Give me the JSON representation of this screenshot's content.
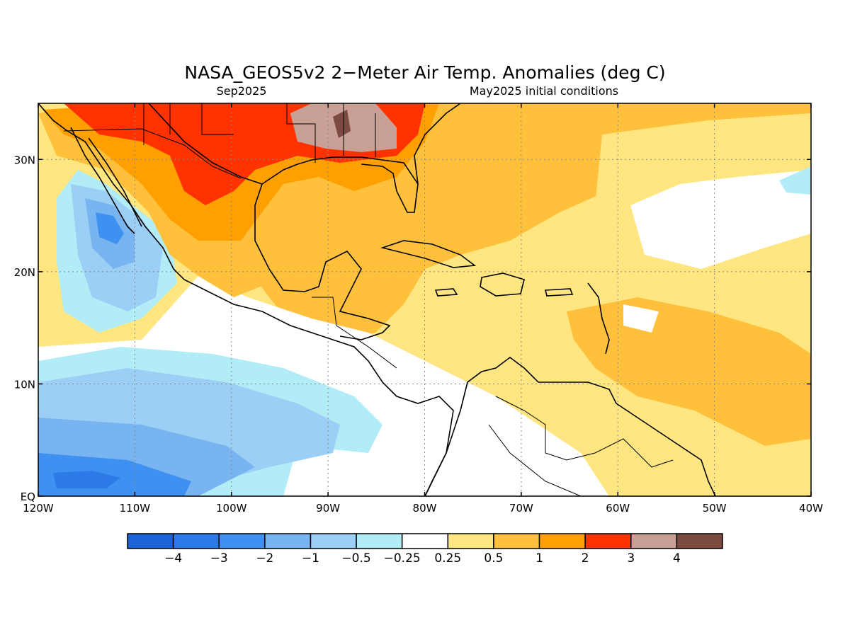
{
  "title": "NASA_GEOS5v2 2−Meter Air Temp. Anomalies (deg C)",
  "subtitle_left": "Sep2025",
  "subtitle_right": "May2025 initial conditions",
  "map": {
    "lon_range": [
      -120,
      -40
    ],
    "lat_range": [
      0,
      35
    ],
    "x_ticks": [
      {
        "lon": -120,
        "label": "120W"
      },
      {
        "lon": -110,
        "label": "110W"
      },
      {
        "lon": -100,
        "label": "100W"
      },
      {
        "lon": -90,
        "label": "90W"
      },
      {
        "lon": -80,
        "label": "80W"
      },
      {
        "lon": -70,
        "label": "70W"
      },
      {
        "lon": -60,
        "label": "60W"
      },
      {
        "lon": -50,
        "label": "50W"
      },
      {
        "lon": -40,
        "label": "40W"
      }
    ],
    "y_ticks": [
      {
        "lat": 0,
        "label": "EQ"
      },
      {
        "lat": 10,
        "label": "10N"
      },
      {
        "lat": 20,
        "label": "20N"
      },
      {
        "lat": 30,
        "label": "30N"
      }
    ],
    "gridlines": "dotted"
  },
  "legend": {
    "colors": [
      "#1a64d8",
      "#2b7ae8",
      "#3e91f0",
      "#78b4f0",
      "#9ccff5",
      "#b2edf7",
      "#ffffff",
      "#ffe680",
      "#ffc13c",
      "#ffa000",
      "#ff3200",
      "#c8a096",
      "#7b4a40"
    ],
    "labels": [
      "−4",
      "−3",
      "−2",
      "−1",
      "−0.5",
      "−0.25",
      "0.25",
      "0.5",
      "1",
      "2",
      "3",
      "4"
    ]
  }
}
